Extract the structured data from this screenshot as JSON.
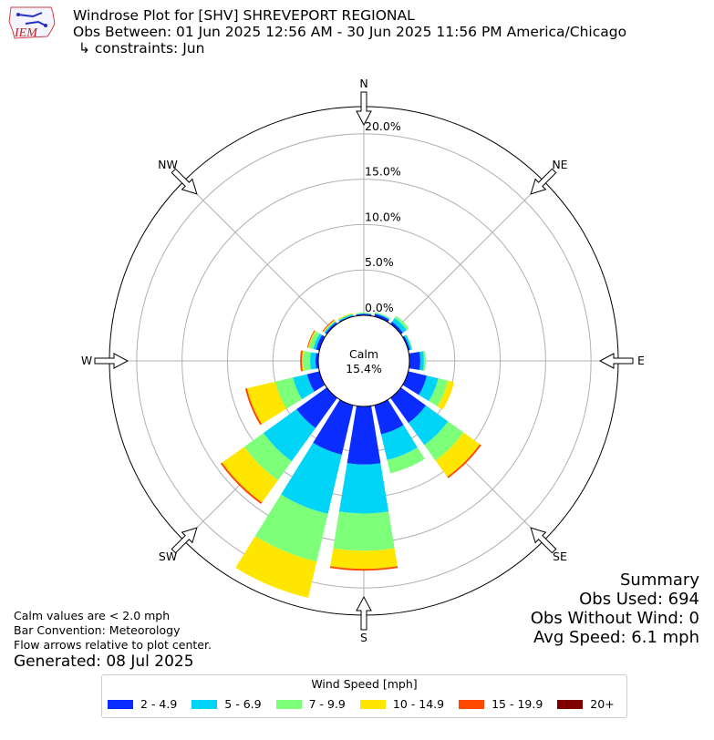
{
  "header": {
    "title": "Windrose Plot for [SHV] SHREVEPORT REGIONAL",
    "obs_between": "Obs Between: 01 Jun 2025 12:56 AM - 30 Jun 2025 11:56 PM America/Chicago",
    "constraints": "↳ constraints: Jun"
  },
  "logo": {
    "text": "IEM"
  },
  "chart_data": {
    "type": "windrose",
    "units": "mph",
    "directions": [
      "N",
      "NNE",
      "NE",
      "ENE",
      "E",
      "ESE",
      "SE",
      "SSE",
      "S",
      "SSW",
      "SW",
      "WSW",
      "W",
      "WNW",
      "NW",
      "NNW"
    ],
    "compass_labels": [
      "N",
      "NE",
      "E",
      "SE",
      "S",
      "SW",
      "W",
      "NW"
    ],
    "radial_tick_labels": [
      "0.0%",
      "5.0%",
      "10.0%",
      "15.0%",
      "20.0%"
    ],
    "radial_ticks": [
      0,
      5,
      10,
      15,
      20
    ],
    "radial_max": 23,
    "calm": {
      "label": "Calm",
      "value_text": "15.4%",
      "value": 15.4
    },
    "bins": [
      {
        "label": "2 - 4.9",
        "color": "#0a2cff"
      },
      {
        "label": "5 - 6.9",
        "color": "#00d4f7"
      },
      {
        "label": "7 - 9.9",
        "color": "#7dff7a"
      },
      {
        "label": "10 - 14.9",
        "color": "#ffe600"
      },
      {
        "label": "15 - 19.9",
        "color": "#ff4a00"
      },
      {
        "label": "20+",
        "color": "#800000"
      }
    ],
    "cumulative_percent": [
      [
        0.15,
        0.2,
        0.3,
        0.3,
        0.0,
        0.0
      ],
      [
        0.3,
        0.4,
        0.5,
        0.5,
        0.0,
        0.0
      ],
      [
        0.3,
        0.8,
        1.1,
        1.1,
        0.0,
        0.0
      ],
      [
        0.2,
        0.4,
        0.5,
        0.5,
        0.0,
        0.0
      ],
      [
        1.2,
        1.6,
        1.8,
        1.8,
        0.0,
        0.0
      ],
      [
        2.1,
        3.4,
        4.5,
        5.2,
        5.2,
        5.2
      ],
      [
        3.4,
        6.4,
        8.5,
        10.7,
        10.9,
        10.9
      ],
      [
        3.3,
        6.2,
        7.7,
        7.7,
        7.7,
        7.7
      ],
      [
        6.4,
        11.8,
        15.9,
        17.9,
        18.1,
        18.1
      ],
      [
        5.6,
        12.3,
        17.7,
        21.8,
        21.8,
        21.8
      ],
      [
        4.1,
        8.6,
        11.2,
        14.2,
        14.4,
        14.4
      ],
      [
        1.4,
        3.0,
        5.0,
        8.2,
        8.4,
        8.4
      ],
      [
        0.3,
        0.9,
        1.7,
        1.8,
        2.0,
        2.0
      ],
      [
        0.4,
        0.7,
        1.2,
        1.3,
        1.4,
        1.4
      ],
      [
        0.2,
        0.35,
        0.4,
        0.5,
        0.6,
        0.6
      ],
      [
        0.1,
        0.25,
        0.3,
        0.4,
        0.4,
        0.4
      ]
    ]
  },
  "notes": {
    "line1": "Calm values are < 2.0 mph",
    "line2": "Bar Convention: Meteorology",
    "line3": "Flow arrows relative to plot center.",
    "generated": "Generated: 08 Jul 2025"
  },
  "summary": {
    "title": "Summary",
    "obs_used": "Obs Used: 694",
    "obs_without_wind": "Obs Without Wind: 0",
    "avg_speed": "Avg Speed: 6.1 mph"
  },
  "legend": {
    "title": "Wind Speed [mph]"
  }
}
